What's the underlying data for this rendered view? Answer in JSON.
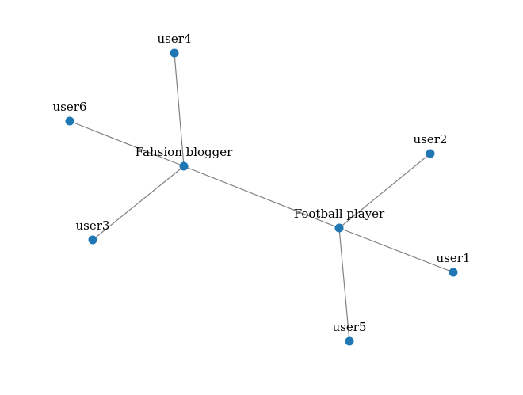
{
  "graph": {
    "node_color": "#1f77b4",
    "edge_color": "#808080",
    "nodes": [
      {
        "id": "fashion",
        "label": "Fahsion blogger"
      },
      {
        "id": "football",
        "label": "Football player"
      },
      {
        "id": "user1",
        "label": "user1"
      },
      {
        "id": "user2",
        "label": "user2"
      },
      {
        "id": "user3",
        "label": "user3"
      },
      {
        "id": "user4",
        "label": "user4"
      },
      {
        "id": "user5",
        "label": "user5"
      },
      {
        "id": "user6",
        "label": "user6"
      }
    ],
    "edges": [
      {
        "from": "fashion",
        "to": "user4"
      },
      {
        "from": "fashion",
        "to": "user6"
      },
      {
        "from": "fashion",
        "to": "user3"
      },
      {
        "from": "fashion",
        "to": "football"
      },
      {
        "from": "football",
        "to": "user2"
      },
      {
        "from": "football",
        "to": "user1"
      },
      {
        "from": "football",
        "to": "user5"
      }
    ]
  }
}
